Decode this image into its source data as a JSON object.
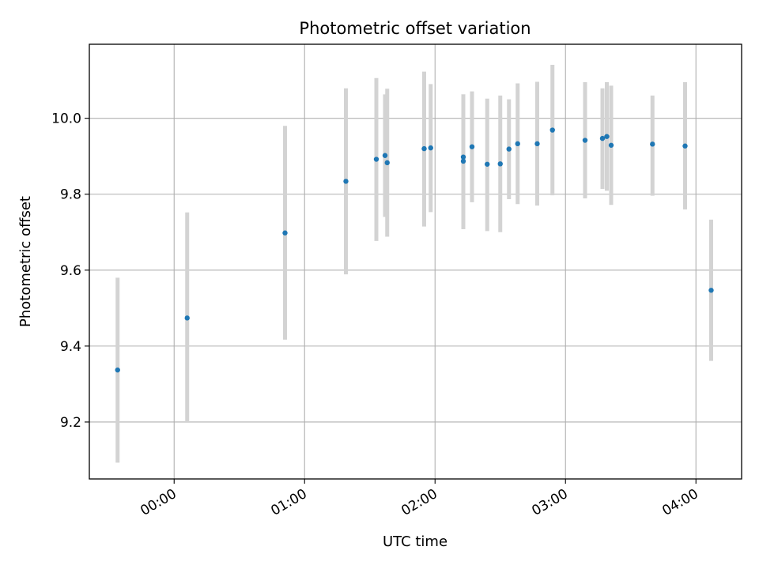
{
  "chart_data": {
    "type": "scatter",
    "title": "Photometric offset variation",
    "xlabel": "UTC time",
    "ylabel": "Photometric offset",
    "x_unit": "HH:MM",
    "xlim": [
      "-00:39",
      "04:21"
    ],
    "ylim": [
      9.05,
      10.195
    ],
    "xticks": [
      "00:00",
      "01:00",
      "02:00",
      "03:00",
      "04:00"
    ],
    "yticks": [
      9.2,
      9.4,
      9.6,
      9.8,
      10.0
    ],
    "ytick_labels": [
      "9.2",
      "9.4",
      "9.6",
      "9.8",
      "10.0"
    ],
    "grid": true,
    "legend": "none",
    "x_tick_rotation": "30°",
    "series": [
      {
        "marker_color": "#1f77b4",
        "errorbar_color": "#d3d3d3",
        "points": [
          {
            "x": "-00:26",
            "y": 9.337,
            "ylow": 9.093,
            "yhigh": 9.58
          },
          {
            "x": "00:06",
            "y": 9.474,
            "ylow": 9.198,
            "yhigh": 9.752
          },
          {
            "x": "00:51",
            "y": 9.698,
            "ylow": 9.417,
            "yhigh": 9.98
          },
          {
            "x": "01:19",
            "y": 9.834,
            "ylow": 9.589,
            "yhigh": 10.079
          },
          {
            "x": "01:33",
            "y": 9.892,
            "ylow": 9.677,
            "yhigh": 10.106
          },
          {
            "x": "01:37",
            "y": 9.902,
            "ylow": 9.74,
            "yhigh": 10.063
          },
          {
            "x": "01:38",
            "y": 9.883,
            "ylow": 9.688,
            "yhigh": 10.078
          },
          {
            "x": "01:55",
            "y": 9.92,
            "ylow": 9.715,
            "yhigh": 10.123
          },
          {
            "x": "01:58",
            "y": 9.922,
            "ylow": 9.753,
            "yhigh": 10.09
          },
          {
            "x": "02:13",
            "y": 9.898,
            "ylow": 9.708,
            "yhigh": 10.063
          },
          {
            "x": "02:13",
            "y": 9.887,
            "ylow": 9.708,
            "yhigh": 10.063
          },
          {
            "x": "02:17",
            "y": 9.925,
            "ylow": 9.779,
            "yhigh": 10.071
          },
          {
            "x": "02:24",
            "y": 9.879,
            "ylow": 9.703,
            "yhigh": 10.052
          },
          {
            "x": "02:30",
            "y": 9.88,
            "ylow": 9.7,
            "yhigh": 10.06
          },
          {
            "x": "02:34",
            "y": 9.919,
            "ylow": 9.787,
            "yhigh": 10.05
          },
          {
            "x": "02:38",
            "y": 9.933,
            "ylow": 9.774,
            "yhigh": 10.092
          },
          {
            "x": "02:47",
            "y": 9.933,
            "ylow": 9.77,
            "yhigh": 10.096
          },
          {
            "x": "02:54",
            "y": 9.969,
            "ylow": 9.797,
            "yhigh": 10.141
          },
          {
            "x": "03:09",
            "y": 9.942,
            "ylow": 9.789,
            "yhigh": 10.095
          },
          {
            "x": "03:17",
            "y": 9.947,
            "ylow": 9.814,
            "yhigh": 10.079
          },
          {
            "x": "03:19",
            "y": 9.952,
            "ylow": 9.809,
            "yhigh": 10.095
          },
          {
            "x": "03:21",
            "y": 9.929,
            "ylow": 9.772,
            "yhigh": 10.086
          },
          {
            "x": "03:40",
            "y": 9.932,
            "ylow": 9.796,
            "yhigh": 10.06
          },
          {
            "x": "03:55",
            "y": 9.927,
            "ylow": 9.76,
            "yhigh": 10.095
          },
          {
            "x": "04:07",
            "y": 9.547,
            "ylow": 9.361,
            "yhigh": 9.733
          }
        ]
      }
    ]
  }
}
